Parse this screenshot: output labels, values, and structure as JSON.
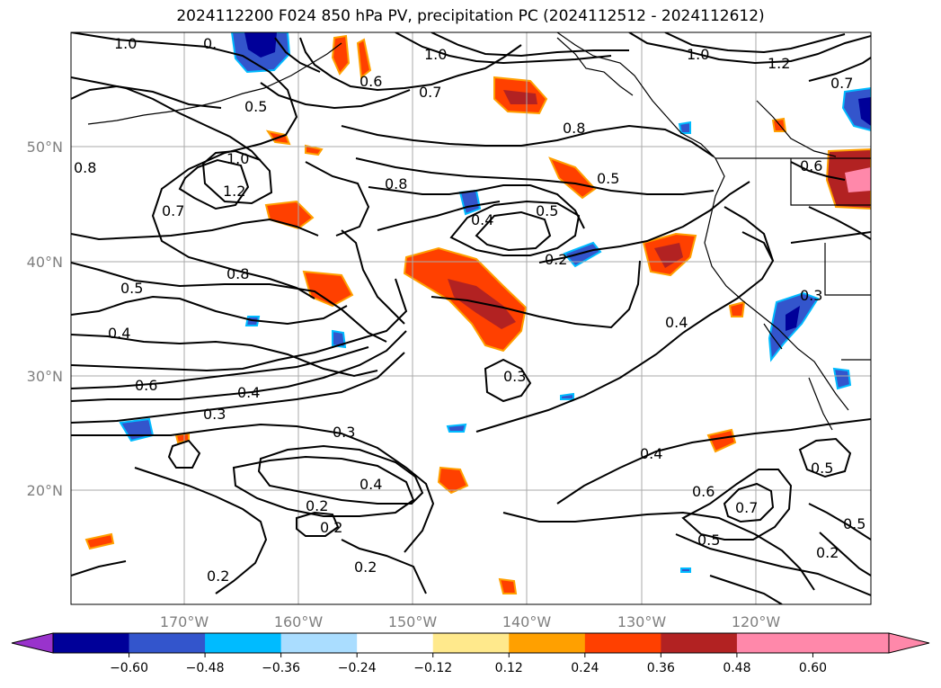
{
  "title": "2024112200 F024 850 hPa PV, precipitation PC (2024112512 - 2024112612)",
  "lat_labels": [
    "50°N",
    "40°N",
    "30°N",
    "20°N"
  ],
  "lon_labels": [
    "170°W",
    "160°W",
    "150°W",
    "140°W",
    "130°W",
    "120°W"
  ],
  "contour_labels": [
    "1.0",
    "0.",
    "0.5",
    "0.6",
    "1.0",
    "0.7",
    "1.0",
    "1.2",
    "0.7",
    "1.0",
    "1.2",
    "0.8",
    "0.8",
    "0.7",
    "0.8",
    "0.4",
    "0.5",
    "0.5",
    "0.6",
    "0.8",
    "0.5",
    "0.2",
    "0.4",
    "0.3",
    "0.6",
    "0.4",
    "0.3",
    "0.3",
    "0.4",
    "0.3",
    "0.4",
    "0.2",
    "0.2",
    "0.2",
    "0.2",
    "0.5",
    "0.6",
    "0.7",
    "0.5",
    "0.5",
    "0.2"
  ],
  "colorbar": {
    "ticks": [
      "−0.60",
      "−0.48",
      "−0.36",
      "−0.24",
      "−0.12",
      "0.12",
      "0.24",
      "0.36",
      "0.48",
      "0.60"
    ],
    "colors": [
      "#9933cc",
      "#000099",
      "#3355cc",
      "#00bbff",
      "#aaddff",
      "#ffffff",
      "#ffe98c",
      "#ffa000",
      "#ff4000",
      "#b22222",
      "#ff88aa",
      "#ff88aa"
    ]
  },
  "palette": {
    "gridline": "#aaaaaa",
    "coastline": "#000000",
    "contour": "#000000"
  }
}
